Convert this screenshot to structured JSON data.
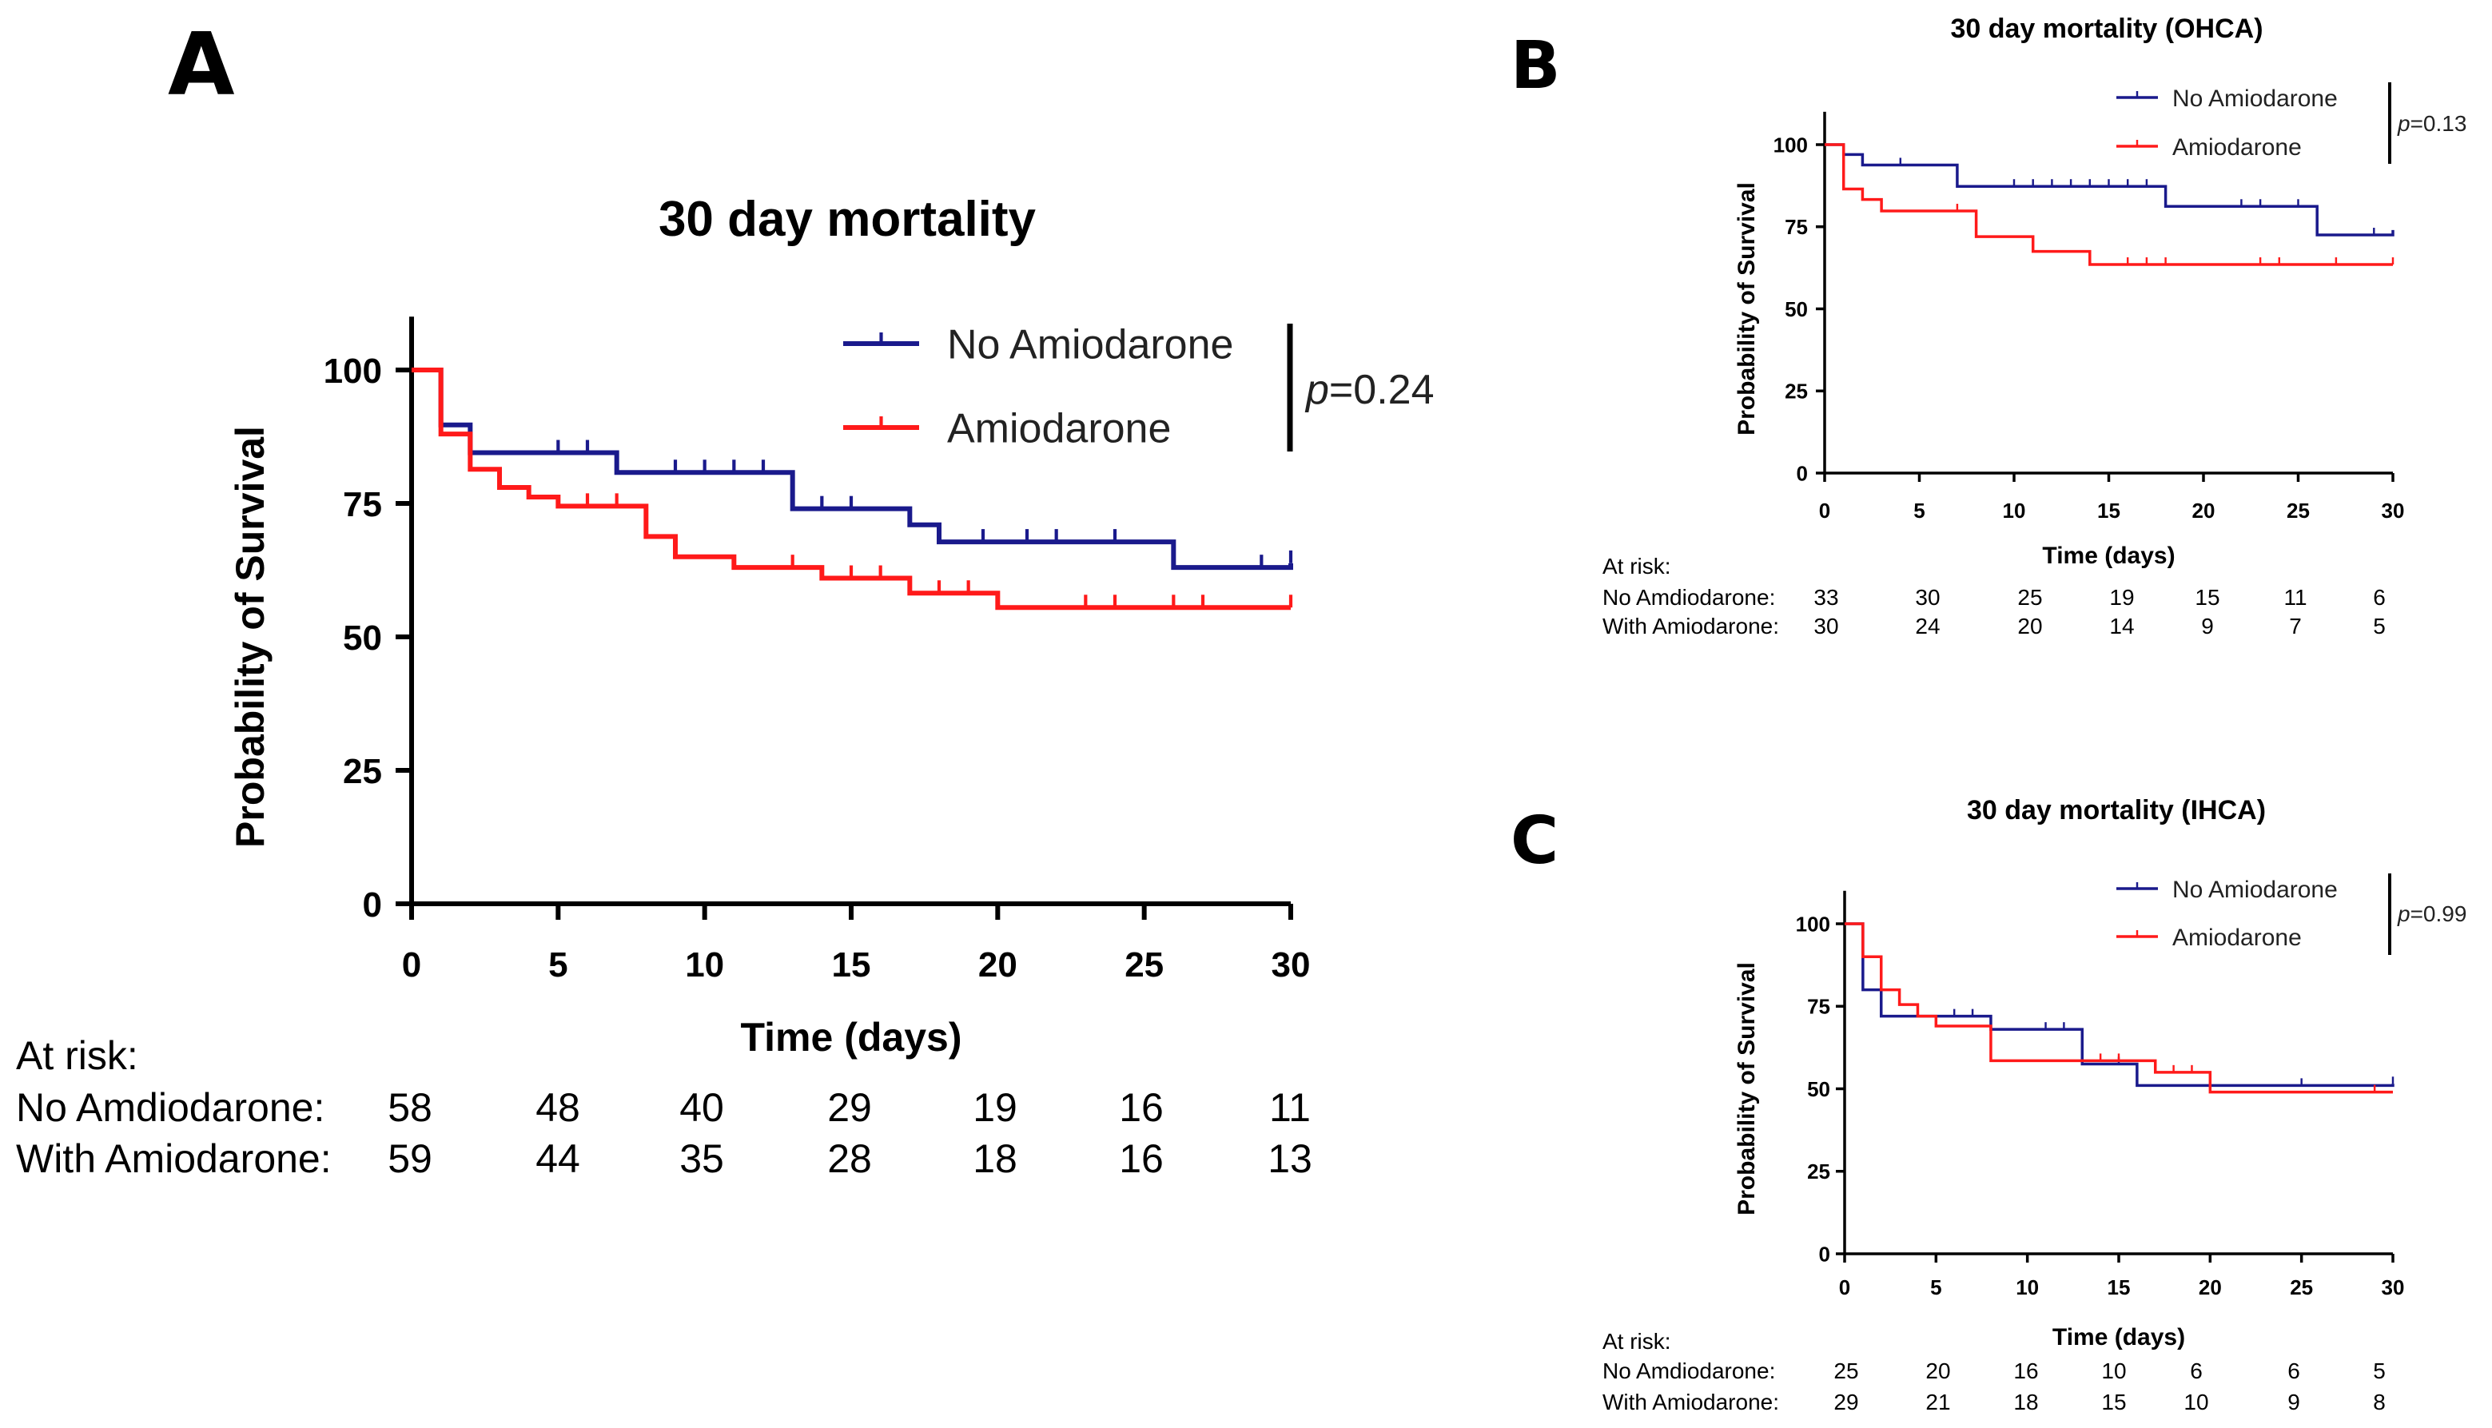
{
  "colors": {
    "no_amiodarone": "#1a1a8c",
    "amiodarone": "#ff1a1a",
    "axis": "#000000"
  },
  "chart_data": [
    {
      "id": "A",
      "panel_label": "A",
      "type": "km-survival",
      "title": "30 day mortality",
      "xlabel": "Time (days)",
      "ylabel": "Probability of Survival",
      "xlim": [
        0,
        30
      ],
      "ylim": [
        0,
        100
      ],
      "x_ticks": [
        0,
        5,
        10,
        15,
        20,
        25,
        30
      ],
      "y_ticks": [
        0,
        25,
        50,
        75,
        100
      ],
      "p_value": {
        "prefix": "p",
        "text": "=0.24"
      },
      "series": [
        {
          "name": "No Amiodarone",
          "color_key": "no_amiodarone",
          "steps": [
            [
              0,
              100
            ],
            [
              1,
              89.7
            ],
            [
              2,
              84.5
            ],
            [
              7,
              80.8
            ],
            [
              13,
              74
            ],
            [
              17,
              71
            ],
            [
              18,
              67.8
            ],
            [
              26,
              63
            ],
            [
              30,
              63.8
            ]
          ],
          "censor": [
            5,
            6,
            9,
            10,
            11,
            12,
            14,
            15,
            17,
            19.5,
            21,
            22,
            24,
            29,
            30
          ]
        },
        {
          "name": "Amiodarone",
          "color_key": "amiodarone",
          "steps": [
            [
              0,
              100
            ],
            [
              1,
              88
            ],
            [
              2,
              81.4
            ],
            [
              3,
              78
            ],
            [
              4,
              76.2
            ],
            [
              5,
              74.5
            ],
            [
              8,
              68.8
            ],
            [
              9,
              65
            ],
            [
              11,
              63
            ],
            [
              14,
              61
            ],
            [
              17,
              58.2
            ],
            [
              20,
              55.5
            ],
            [
              30,
              55.5
            ]
          ],
          "censor": [
            6,
            7,
            13,
            15,
            16,
            18,
            19,
            23,
            24,
            26,
            27,
            30
          ]
        }
      ],
      "at_risk": {
        "heading": "At risk:",
        "rows": [
          {
            "label": "No Amdiodarone:",
            "values": [
              "58",
              "48",
              "40",
              "29",
              "19",
              "16",
              "11"
            ]
          },
          {
            "label": "With Amiodarone:",
            "values": [
              "59",
              "44",
              "35",
              "28",
              "18",
              "16",
              "13"
            ]
          }
        ]
      }
    },
    {
      "id": "B",
      "panel_label": "B",
      "type": "km-survival",
      "title": "30 day mortality (OHCA)",
      "xlabel": "Time (days)",
      "ylabel": "Probability of Survival",
      "xlim": [
        0,
        30
      ],
      "ylim": [
        0,
        100
      ],
      "x_ticks": [
        0,
        5,
        10,
        15,
        20,
        25,
        30
      ],
      "y_ticks": [
        0,
        25,
        50,
        75,
        100
      ],
      "p_value": {
        "prefix": "p",
        "text": "=0.13"
      },
      "series": [
        {
          "name": "No Amiodarone",
          "color_key": "no_amiodarone",
          "steps": [
            [
              0,
              100
            ],
            [
              1,
              97
            ],
            [
              2,
              93.8
            ],
            [
              7,
              87.3
            ],
            [
              18,
              81.2
            ],
            [
              26,
              72.5
            ],
            [
              30,
              74
            ]
          ],
          "censor": [
            4,
            10,
            11,
            12,
            13,
            14,
            15,
            16,
            17,
            22,
            23,
            25,
            29
          ]
        },
        {
          "name": "Amiodarone",
          "color_key": "amiodarone",
          "steps": [
            [
              0,
              100
            ],
            [
              1,
              86.5
            ],
            [
              2,
              83.3
            ],
            [
              3,
              79.8
            ],
            [
              8,
              72
            ],
            [
              11,
              67.5
            ],
            [
              14,
              63.5
            ],
            [
              30,
              63.5
            ]
          ],
          "censor": [
            7,
            8,
            16,
            17,
            18,
            23,
            24,
            27,
            30
          ]
        }
      ],
      "at_risk": {
        "heading": "At risk:",
        "rows": [
          {
            "label": "No Amdiodarone:",
            "values": [
              "33",
              "30",
              "25",
              "19",
              "15",
              "11",
              "6"
            ]
          },
          {
            "label": "With Amiodarone:",
            "values": [
              "30",
              "24",
              "20",
              "14",
              "9",
              "7",
              "5"
            ]
          }
        ]
      }
    },
    {
      "id": "C",
      "panel_label": "C",
      "type": "km-survival",
      "title": "30 day mortality (IHCA)",
      "xlabel": "Time (days)",
      "ylabel": "Probability of Survival",
      "xlim": [
        0,
        30
      ],
      "ylim": [
        0,
        100
      ],
      "x_ticks": [
        0,
        5,
        10,
        15,
        20,
        25,
        30
      ],
      "y_ticks": [
        0,
        25,
        50,
        75,
        100
      ],
      "p_value": {
        "prefix": "p",
        "text": "=0.99"
      },
      "series": [
        {
          "name": "No Amiodarone",
          "color_key": "no_amiodarone",
          "steps": [
            [
              0,
              100
            ],
            [
              1,
              80
            ],
            [
              2,
              72
            ],
            [
              5,
              72
            ],
            [
              8,
              68
            ],
            [
              13,
              57.5
            ],
            [
              16,
              51
            ],
            [
              20,
              51
            ],
            [
              30,
              51.5
            ]
          ],
          "censor": [
            6,
            7,
            11,
            12,
            15,
            16,
            25,
            30
          ]
        },
        {
          "name": "Amiodarone",
          "color_key": "amiodarone",
          "steps": [
            [
              0,
              100
            ],
            [
              1,
              90
            ],
            [
              2,
              80
            ],
            [
              3,
              75.5
            ],
            [
              4,
              72
            ],
            [
              5,
              69
            ],
            [
              8,
              58.5
            ],
            [
              14,
              58.5
            ],
            [
              17,
              55
            ],
            [
              20,
              49
            ],
            [
              30,
              49
            ]
          ],
          "censor": [
            14,
            15,
            18,
            19,
            29
          ]
        }
      ],
      "at_risk": {
        "heading": "At risk:",
        "rows": [
          {
            "label": "No Amdiodarone:",
            "values": [
              "25",
              "20",
              "16",
              "10",
              "6",
              "6",
              "5"
            ]
          },
          {
            "label": "With Amiodarone:",
            "values": [
              "29",
              "21",
              "18",
              "15",
              "10",
              "9",
              "8"
            ]
          }
        ]
      }
    }
  ]
}
